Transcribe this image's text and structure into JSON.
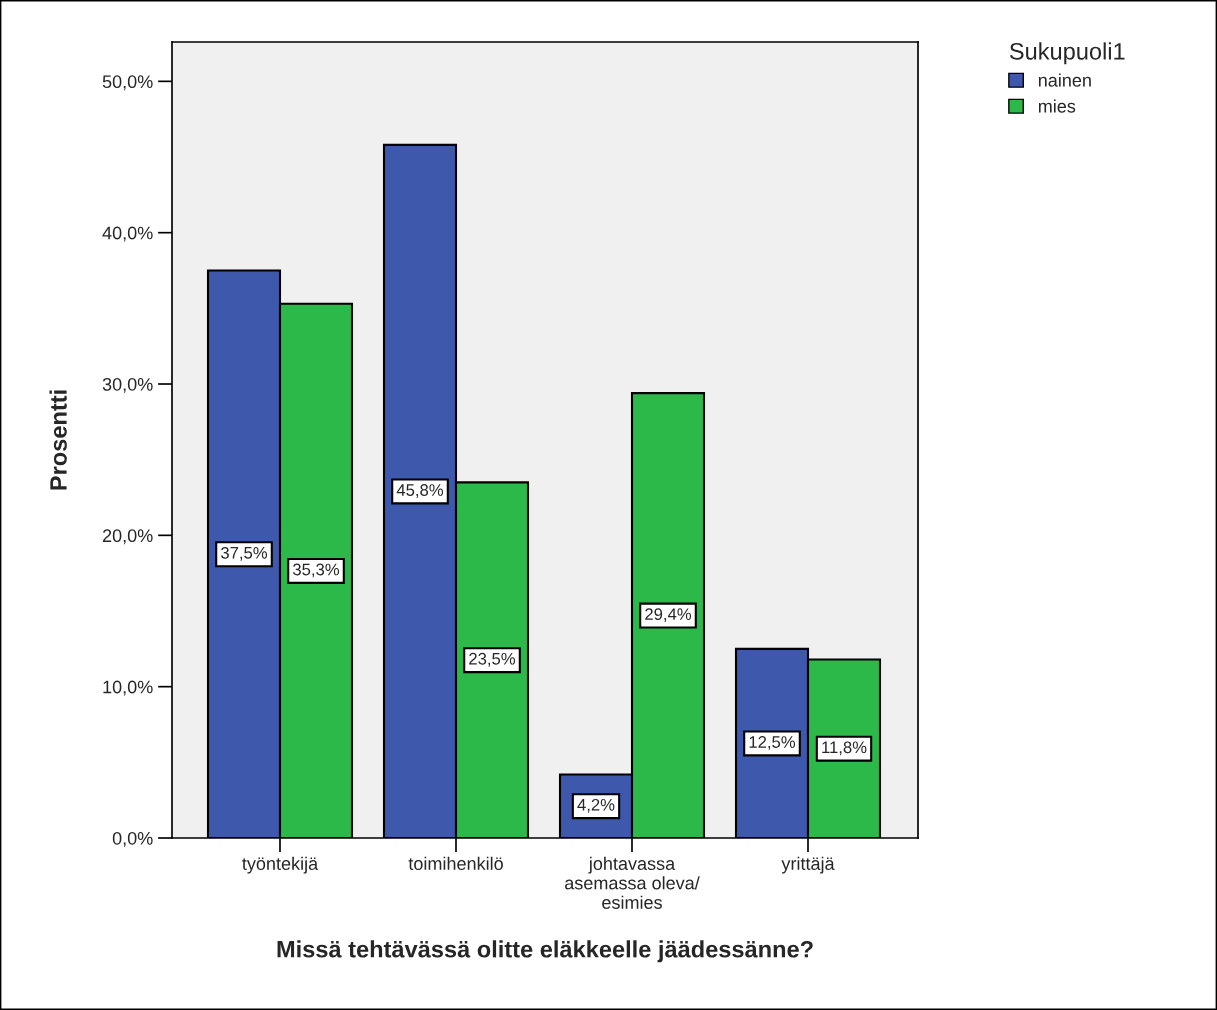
{
  "chart_data": {
    "type": "bar",
    "xlabel": "Missä tehtävässä olitte eläkkeelle jäädessänne?",
    "ylabel": "Prosentti",
    "legend_title": "Sukupuoli1",
    "categories": [
      "työntekijä",
      "toimihenkilö",
      "johtavassa\nasemassa oleva/\nesimies",
      "yrittäjä"
    ],
    "series": [
      {
        "name": "nainen",
        "color": "#3e58ac",
        "values": [
          37.5,
          45.8,
          4.2,
          12.5
        ],
        "value_labels": [
          "37,5%",
          "45,8%",
          "4,2%",
          "12,5%"
        ]
      },
      {
        "name": "mies",
        "color": "#2db84a",
        "values": [
          35.3,
          23.5,
          29.4,
          11.8
        ],
        "value_labels": [
          "35,3%",
          "23,5%",
          "29,4%",
          "11,8%"
        ]
      }
    ],
    "ylim": [
      0,
      52.6
    ],
    "yticks": [
      {
        "value": 0,
        "label": "0,0%"
      },
      {
        "value": 10,
        "label": "10,0%"
      },
      {
        "value": 20,
        "label": "20,0%"
      },
      {
        "value": 30,
        "label": "30,0%"
      },
      {
        "value": 40,
        "label": "40,0%"
      },
      {
        "value": 50,
        "label": "50,0%"
      }
    ],
    "grid": false,
    "legend": "top right"
  }
}
